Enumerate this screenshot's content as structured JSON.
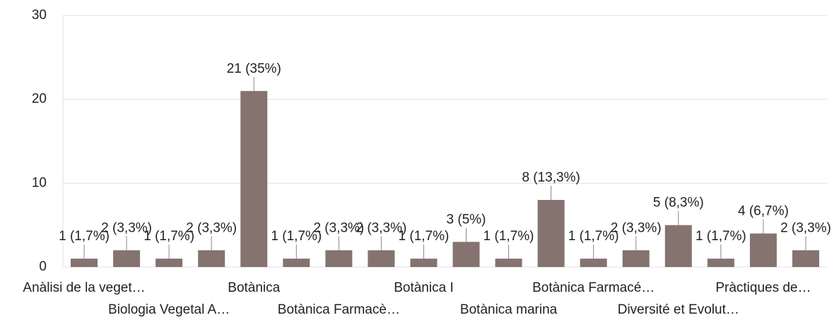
{
  "chart_data": {
    "type": "bar",
    "categories": [
      "Anàlisi de la veget…",
      null,
      "Biologia Vegetal A…",
      null,
      "Botànica",
      null,
      "Botànica Farmacè…",
      null,
      "Botànica I",
      null,
      "Botànica marina",
      null,
      "Botànica Farmacé…",
      null,
      "Diversité et Evolut…",
      null,
      "Pràctiques de…",
      null
    ],
    "values": [
      1,
      2,
      1,
      2,
      21,
      1,
      2,
      2,
      1,
      3,
      1,
      8,
      1,
      2,
      5,
      1,
      4,
      2
    ],
    "value_labels": [
      "1 (1,7%)",
      "2 (3,3%)",
      "1 (1,7%)",
      "2 (3,3%)",
      "21 (35%)",
      "1 (1,7%)",
      "2 (3,3%)",
      "2 (3,3%)",
      "1 (1,7%)",
      "3 (5%)",
      "1 (1,7%)",
      "8 (13,3%)",
      "1 (1,7%)",
      "2 (3,3%)",
      "5 (8,3%)",
      "1 (1,7%)",
      "4 (6,7%)",
      "2 (3,3%)"
    ],
    "color": "#857370",
    "ylim": [
      0,
      30
    ],
    "yticks": [
      0,
      10,
      20,
      30
    ],
    "grid": true
  }
}
